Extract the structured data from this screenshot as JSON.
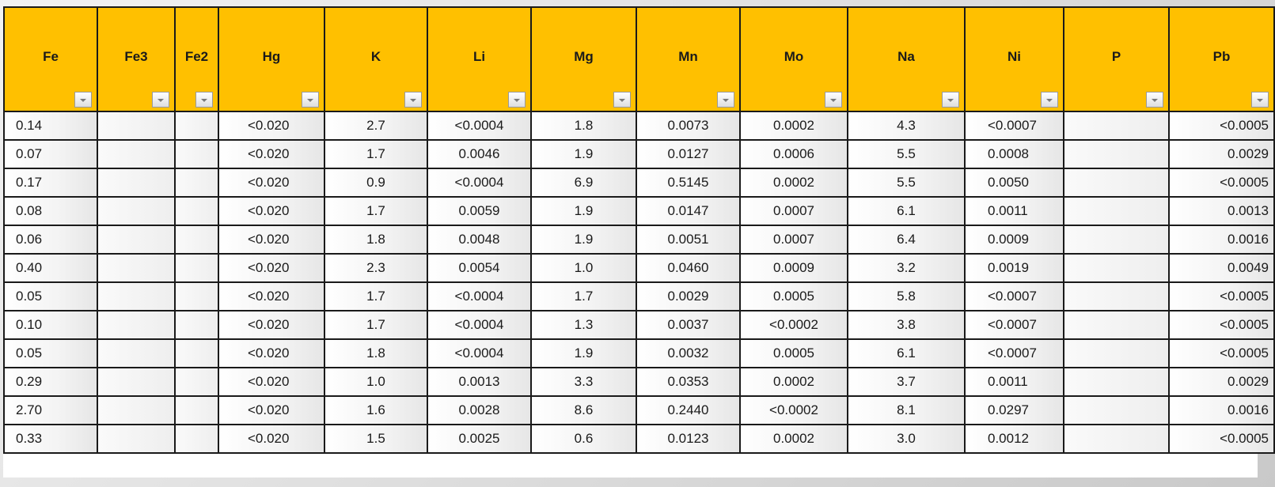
{
  "table": {
    "headers": [
      "Fe",
      "Fe3",
      "Fe2",
      "Hg",
      "K",
      "Li",
      "Mg",
      "Mn",
      "Mo",
      "Na",
      "Ni",
      "P",
      "Pb"
    ],
    "filter_icon": "dropdown-arrow",
    "header_color": "#ffc000",
    "rows": [
      [
        "0.14",
        "",
        "",
        "<0.020",
        "2.7",
        "<0.0004",
        "1.8",
        "0.0073",
        "0.0002",
        "4.3",
        "<0.0007",
        "",
        "<0.0005"
      ],
      [
        "0.07",
        "",
        "",
        "<0.020",
        "1.7",
        "0.0046",
        "1.9",
        "0.0127",
        "0.0006",
        "5.5",
        "0.0008",
        "",
        "0.0029"
      ],
      [
        "0.17",
        "",
        "",
        "<0.020",
        "0.9",
        "<0.0004",
        "6.9",
        "0.5145",
        "0.0002",
        "5.5",
        "0.0050",
        "",
        "<0.0005"
      ],
      [
        "0.08",
        "",
        "",
        "<0.020",
        "1.7",
        "0.0059",
        "1.9",
        "0.0147",
        "0.0007",
        "6.1",
        "0.0011",
        "",
        "0.0013"
      ],
      [
        "0.06",
        "",
        "",
        "<0.020",
        "1.8",
        "0.0048",
        "1.9",
        "0.0051",
        "0.0007",
        "6.4",
        "0.0009",
        "",
        "0.0016"
      ],
      [
        "0.40",
        "",
        "",
        "<0.020",
        "2.3",
        "0.0054",
        "1.0",
        "0.0460",
        "0.0009",
        "3.2",
        "0.0019",
        "",
        "0.0049"
      ],
      [
        "0.05",
        "",
        "",
        "<0.020",
        "1.7",
        "<0.0004",
        "1.7",
        "0.0029",
        "0.0005",
        "5.8",
        "<0.0007",
        "",
        "<0.0005"
      ],
      [
        "0.10",
        "",
        "",
        "<0.020",
        "1.7",
        "<0.0004",
        "1.3",
        "0.0037",
        "<0.0002",
        "3.8",
        "<0.0007",
        "",
        "<0.0005"
      ],
      [
        "0.05",
        "",
        "",
        "<0.020",
        "1.8",
        "<0.0004",
        "1.9",
        "0.0032",
        "0.0005",
        "6.1",
        "<0.0007",
        "",
        "<0.0005"
      ],
      [
        "0.29",
        "",
        "",
        "<0.020",
        "1.0",
        "0.0013",
        "3.3",
        "0.0353",
        "0.0002",
        "3.7",
        "0.0011",
        "",
        "0.0029"
      ],
      [
        "2.70",
        "",
        "",
        "<0.020",
        "1.6",
        "0.0028",
        "8.6",
        "0.2440",
        "<0.0002",
        "8.1",
        "0.0297",
        "",
        "0.0016"
      ],
      [
        "0.33",
        "",
        "",
        "<0.020",
        "1.5",
        "0.0025",
        "0.6",
        "0.0123",
        "0.0002",
        "3.0",
        "0.0012",
        "",
        "<0.0005"
      ]
    ]
  }
}
